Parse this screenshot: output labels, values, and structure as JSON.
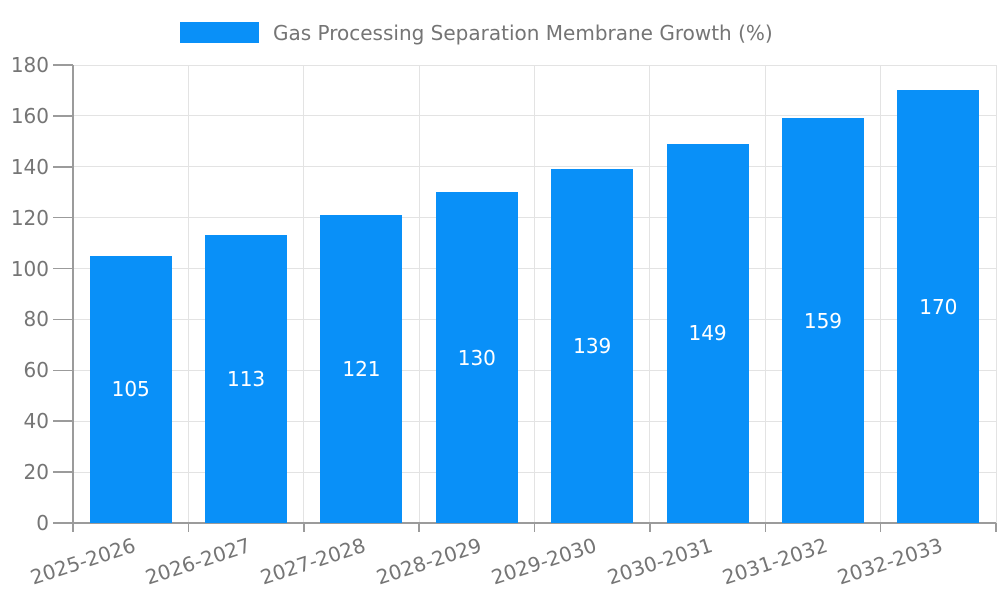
{
  "chart_data": {
    "type": "bar",
    "legend_label": "Gas Processing Separation Membrane Growth (%)",
    "legend_position": "top",
    "categories": [
      "2025-2026",
      "2026-2027",
      "2027-2028",
      "2028-2029",
      "2029-2030",
      "2030-2031",
      "2031-2032",
      "2032-2033"
    ],
    "values": [
      105,
      113,
      121,
      130,
      139,
      149,
      159,
      170
    ],
    "xlabel": "",
    "ylabel": "",
    "ylim": [
      0,
      180
    ],
    "yticks": [
      0,
      20,
      40,
      60,
      80,
      100,
      120,
      140,
      160,
      180
    ],
    "grid": true,
    "x_tick_rotation_deg": -18,
    "bar_label_position": "inside-center",
    "colors": {
      "bar": "#0990f8",
      "grid": "#e3e3e3",
      "axis": "#9b9b9b",
      "label": "#757575",
      "bar_label": "#ffffff",
      "background": "#ffffff"
    }
  }
}
